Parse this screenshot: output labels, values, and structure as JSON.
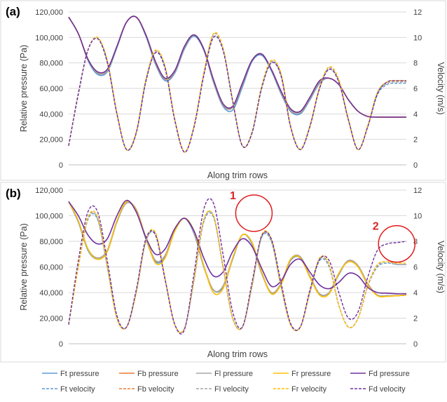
{
  "chart_data": [
    {
      "type": "line",
      "panel_label": "(a)",
      "xlabel": "Along trim rows",
      "ylabel_left": "Relative pressure (Pa)",
      "ylabel_right": "Velocity (m/s)",
      "ylim_left": [
        0,
        120000
      ],
      "ylim_right": [
        0,
        12
      ],
      "yticks_left": [
        "0",
        "20,000",
        "40,000",
        "60,000",
        "80,000",
        "100,000",
        "120,000"
      ],
      "yticks_right": [
        "0",
        "2",
        "4",
        "6",
        "8",
        "10",
        "12"
      ],
      "grid": "horizontal",
      "x": [
        0,
        0.5,
        1,
        1.5,
        2,
        2.5,
        3,
        3.5,
        4,
        4.5,
        5,
        5.5,
        6,
        6.5,
        7,
        7.5,
        8,
        8.5,
        9,
        9.5,
        10,
        10.5,
        11,
        11.5,
        12,
        12.5,
        13,
        13.5,
        14,
        14.5,
        15,
        15.5,
        16,
        16.5,
        17,
        17.5
      ],
      "series": [
        {
          "name": "Ft pressure",
          "axis": "left",
          "color": "#5b9bd5",
          "dash": false,
          "values": [
            116000,
            103000,
            82000,
            71000,
            73000,
            92000,
            112000,
            116000,
            101000,
            79000,
            66000,
            72000,
            91000,
            101000,
            90000,
            65000,
            46000,
            43000,
            61000,
            81000,
            86000,
            74000,
            56000,
            42000,
            40000,
            51000,
            64000,
            68000,
            63000,
            51000,
            42000,
            38000,
            37500,
            37500,
            37500,
            37500
          ]
        },
        {
          "name": "Fb pressure",
          "axis": "left",
          "color": "#ed7d31",
          "dash": false,
          "values": [
            116000,
            103000,
            83000,
            72000,
            74000,
            93000,
            112000,
            116000,
            102000,
            80000,
            67000,
            73000,
            92000,
            102000,
            91000,
            66000,
            47000,
            45000,
            63000,
            82000,
            87000,
            75000,
            57000,
            43000,
            41000,
            52000,
            65000,
            68000,
            63000,
            51000,
            42000,
            38000,
            37500,
            37500,
            37500,
            37500
          ]
        },
        {
          "name": "Fl pressure",
          "axis": "left",
          "color": "#a5a5a5",
          "dash": false,
          "values": [
            116000,
            103000,
            83000,
            72000,
            74000,
            93000,
            112000,
            116000,
            102000,
            80000,
            67000,
            73000,
            92000,
            102000,
            91000,
            66000,
            47000,
            45000,
            63000,
            82000,
            87000,
            75000,
            57000,
            43000,
            41000,
            52000,
            65000,
            68000,
            63000,
            51000,
            42000,
            38000,
            37500,
            37500,
            37500,
            37500
          ]
        },
        {
          "name": "Fr pressure",
          "axis": "left",
          "color": "#ffc000",
          "dash": false,
          "values": [
            116000,
            103000,
            83000,
            73000,
            75000,
            93000,
            112000,
            116000,
            102000,
            81000,
            68000,
            74000,
            93000,
            102000,
            91000,
            67000,
            48000,
            46000,
            64000,
            82000,
            87000,
            75000,
            58000,
            44000,
            42000,
            53000,
            66000,
            68000,
            63000,
            51000,
            42000,
            38000,
            37500,
            37500,
            37500,
            37500
          ]
        },
        {
          "name": "Fd pressure",
          "axis": "left",
          "color": "#7030a0",
          "dash": false,
          "values": [
            116000,
            103000,
            83000,
            73000,
            75000,
            93000,
            112000,
            116000,
            102000,
            81000,
            68000,
            74000,
            93000,
            102000,
            91000,
            67000,
            48000,
            46000,
            64000,
            82000,
            87000,
            75000,
            58000,
            44000,
            42000,
            53000,
            66000,
            68000,
            63000,
            51000,
            42000,
            38000,
            37500,
            37500,
            37500,
            37500
          ]
        },
        {
          "name": "Ft velocity",
          "axis": "right",
          "color": "#5b9bd5",
          "dash": true,
          "values": [
            1.5,
            5.5,
            9.0,
            9.9,
            8.0,
            4.0,
            1.2,
            2.5,
            6.5,
            8.8,
            7.5,
            3.5,
            1.0,
            3.0,
            7.0,
            10.0,
            9.0,
            5.0,
            1.5,
            2.5,
            6.0,
            8.0,
            7.0,
            3.0,
            1.2,
            3.0,
            6.0,
            7.5,
            6.5,
            3.5,
            1.2,
            3.0,
            5.5,
            6.3,
            6.4,
            6.4
          ]
        },
        {
          "name": "Fb velocity",
          "axis": "right",
          "color": "#ed7d31",
          "dash": true,
          "values": [
            1.5,
            5.6,
            9.0,
            10.0,
            8.1,
            4.0,
            1.2,
            2.5,
            6.6,
            8.9,
            7.6,
            3.5,
            1.0,
            3.0,
            7.1,
            10.2,
            9.1,
            5.0,
            1.5,
            2.5,
            6.1,
            8.1,
            7.1,
            3.0,
            1.2,
            3.0,
            6.0,
            7.6,
            6.6,
            3.5,
            1.2,
            3.0,
            5.6,
            6.5,
            6.6,
            6.6
          ]
        },
        {
          "name": "Fl velocity",
          "axis": "right",
          "color": "#a5a5a5",
          "dash": true,
          "values": [
            1.5,
            5.6,
            9.0,
            10.0,
            8.1,
            4.0,
            1.2,
            2.5,
            6.6,
            8.9,
            7.6,
            3.5,
            1.0,
            3.0,
            7.1,
            10.2,
            9.1,
            5.0,
            1.5,
            2.5,
            6.1,
            8.1,
            7.1,
            3.0,
            1.2,
            3.0,
            6.0,
            7.6,
            6.6,
            3.5,
            1.2,
            3.0,
            5.6,
            6.4,
            6.5,
            6.5
          ]
        },
        {
          "name": "Fr velocity",
          "axis": "right",
          "color": "#ffc000",
          "dash": true,
          "values": [
            1.5,
            5.6,
            9.0,
            10.0,
            8.2,
            4.1,
            1.2,
            2.6,
            6.7,
            9.0,
            7.7,
            3.6,
            1.0,
            3.1,
            7.2,
            10.3,
            9.2,
            5.1,
            1.5,
            2.6,
            6.2,
            8.2,
            7.2,
            3.1,
            1.2,
            3.1,
            6.1,
            7.7,
            6.7,
            3.6,
            1.2,
            3.1,
            5.7,
            6.5,
            6.6,
            6.6
          ]
        },
        {
          "name": "Fd velocity",
          "axis": "right",
          "color": "#7030a0",
          "dash": true,
          "values": [
            1.5,
            5.6,
            9.0,
            9.9,
            8.1,
            4.0,
            1.2,
            2.5,
            6.6,
            8.8,
            7.6,
            3.5,
            1.0,
            3.0,
            7.0,
            10.0,
            9.0,
            5.0,
            1.5,
            2.5,
            6.0,
            8.0,
            7.0,
            3.0,
            1.2,
            3.0,
            6.0,
            7.5,
            6.5,
            3.5,
            1.2,
            3.0,
            5.6,
            6.5,
            6.6,
            6.6
          ]
        }
      ]
    },
    {
      "type": "line",
      "panel_label": "(b)",
      "xlabel": "Along trim rows",
      "ylabel_left": "Relative pressure (Pa)",
      "ylabel_right": "Velocity (m/s)",
      "ylim_left": [
        0,
        120000
      ],
      "ylim_right": [
        0,
        12
      ],
      "yticks_left": [
        "0",
        "20,000",
        "40,000",
        "60,000",
        "80,000",
        "100,000",
        "120,000"
      ],
      "yticks_right": [
        "0",
        "2",
        "4",
        "6",
        "8",
        "10",
        "12"
      ],
      "grid": "horizontal",
      "annotations": [
        {
          "text": "1",
          "x": 9.6,
          "axis": "right",
          "y": 10.2
        },
        {
          "text": "2",
          "x": 17.0,
          "axis": "right",
          "y": 7.8
        }
      ],
      "x": [
        0,
        0.5,
        1,
        1.5,
        2,
        2.5,
        3,
        3.5,
        4,
        4.5,
        5,
        5.5,
        6,
        6.5,
        7,
        7.5,
        8,
        8.5,
        9,
        9.5,
        10,
        10.5,
        11,
        11.5,
        12,
        12.5,
        13,
        13.5,
        14,
        14.5,
        15,
        15.5,
        16,
        16.5,
        17,
        17.5
      ],
      "series": [
        {
          "name": "Ft pressure",
          "axis": "left",
          "color": "#5b9bd5",
          "dash": false,
          "values": [
            111000,
            95000,
            73000,
            66000,
            72000,
            95000,
            110000,
            104000,
            82000,
            64000,
            68000,
            88000,
            98000,
            86000,
            60000,
            42000,
            44000,
            66000,
            85000,
            78000,
            55000,
            40000,
            46000,
            65000,
            67000,
            52000,
            39000,
            40000,
            54000,
            65000,
            60000,
            46000,
            38000,
            37500,
            37500,
            38000
          ]
        },
        {
          "name": "Fb pressure",
          "axis": "left",
          "color": "#ed7d31",
          "dash": false,
          "values": [
            111000,
            96000,
            74000,
            67000,
            73000,
            96000,
            110000,
            105000,
            83000,
            65000,
            69000,
            89000,
            98000,
            87000,
            61000,
            42000,
            45000,
            67000,
            85000,
            79000,
            56000,
            40000,
            47000,
            66000,
            68000,
            53000,
            39000,
            40000,
            55000,
            65000,
            61000,
            47000,
            38000,
            37500,
            37500,
            38000
          ]
        },
        {
          "name": "Fl pressure",
          "axis": "left",
          "color": "#a5a5a5",
          "dash": false,
          "values": [
            111000,
            96000,
            74000,
            67000,
            73000,
            96000,
            110000,
            105000,
            83000,
            65000,
            69000,
            89000,
            98000,
            87000,
            61000,
            42000,
            45000,
            67000,
            85000,
            79000,
            56000,
            40000,
            47000,
            66000,
            68000,
            53000,
            39000,
            40000,
            55000,
            65000,
            61000,
            47000,
            38000,
            37500,
            37500,
            38000
          ]
        },
        {
          "name": "Fr pressure",
          "axis": "left",
          "color": "#ffc000",
          "dash": false,
          "values": [
            111000,
            96000,
            74000,
            66000,
            72000,
            96000,
            111000,
            104000,
            83000,
            63000,
            67000,
            88000,
            98000,
            88000,
            61000,
            40000,
            43000,
            67000,
            85000,
            79000,
            56000,
            39000,
            46000,
            66000,
            67000,
            52000,
            38000,
            39000,
            55000,
            64000,
            60000,
            46000,
            37500,
            37000,
            37500,
            38000
          ]
        },
        {
          "name": "Fd pressure",
          "axis": "left",
          "color": "#7030a0",
          "dash": false,
          "values": [
            111000,
            100000,
            85000,
            78000,
            82000,
            100000,
            112000,
            103000,
            83000,
            70000,
            74000,
            90000,
            98000,
            88000,
            67000,
            53000,
            56000,
            72000,
            82000,
            76000,
            59000,
            45000,
            49000,
            62000,
            66000,
            56000,
            46000,
            43000,
            48000,
            55000,
            53000,
            44000,
            40000,
            39500,
            39000,
            39000
          ]
        },
        {
          "name": "Ft velocity",
          "axis": "right",
          "color": "#5b9bd5",
          "dash": true,
          "values": [
            1.5,
            6.0,
            9.7,
            9.7,
            6.0,
            2.0,
            1.3,
            4.0,
            8.0,
            8.5,
            5.0,
            1.5,
            1.2,
            5.0,
            9.5,
            9.9,
            6.0,
            2.0,
            1.3,
            4.5,
            8.3,
            8.0,
            4.5,
            1.5,
            1.3,
            4.0,
            6.5,
            6.0,
            3.0,
            1.3,
            2.0,
            4.5,
            6.0,
            6.3,
            6.2,
            6.2
          ]
        },
        {
          "name": "Fb velocity",
          "axis": "right",
          "color": "#ed7d31",
          "dash": true,
          "values": [
            1.5,
            6.0,
            9.8,
            9.8,
            6.0,
            2.0,
            1.3,
            4.0,
            8.0,
            8.6,
            5.0,
            1.5,
            1.2,
            5.0,
            9.6,
            10.0,
            6.0,
            2.0,
            1.3,
            4.5,
            8.4,
            8.1,
            4.5,
            1.5,
            1.3,
            4.0,
            6.6,
            6.1,
            3.0,
            1.3,
            2.0,
            4.5,
            6.1,
            6.4,
            6.2,
            6.2
          ]
        },
        {
          "name": "Fl velocity",
          "axis": "right",
          "color": "#a5a5a5",
          "dash": true,
          "values": [
            1.5,
            6.0,
            9.8,
            9.8,
            6.0,
            2.0,
            1.3,
            4.0,
            8.0,
            8.6,
            5.0,
            1.5,
            1.2,
            5.0,
            9.6,
            10.0,
            6.0,
            2.0,
            1.3,
            4.5,
            8.4,
            8.1,
            4.5,
            1.5,
            1.3,
            4.0,
            6.6,
            6.1,
            3.0,
            1.3,
            2.0,
            4.5,
            6.1,
            6.4,
            6.2,
            6.2
          ]
        },
        {
          "name": "Fr velocity",
          "axis": "right",
          "color": "#ffc000",
          "dash": true,
          "values": [
            1.5,
            6.0,
            9.9,
            9.9,
            6.1,
            2.0,
            1.3,
            4.0,
            8.1,
            8.7,
            5.1,
            1.5,
            1.2,
            5.1,
            9.7,
            10.0,
            6.1,
            2.0,
            1.3,
            4.6,
            8.5,
            8.2,
            4.6,
            1.5,
            1.3,
            4.1,
            6.7,
            6.2,
            3.0,
            1.3,
            2.0,
            4.6,
            6.2,
            6.4,
            6.3,
            6.3
          ]
        },
        {
          "name": "Fd velocity",
          "axis": "right",
          "color": "#7030a0",
          "dash": true,
          "values": [
            1.5,
            6.5,
            10.3,
            10.3,
            6.5,
            2.2,
            1.3,
            4.2,
            8.2,
            8.5,
            5.0,
            1.5,
            1.1,
            5.5,
            10.5,
            11.0,
            7.0,
            2.5,
            1.3,
            4.8,
            8.4,
            8.2,
            4.8,
            1.6,
            1.3,
            4.2,
            6.6,
            6.5,
            4.0,
            2.0,
            2.5,
            5.2,
            7.3,
            7.8,
            7.9,
            8.0
          ]
        }
      ]
    }
  ]
}
